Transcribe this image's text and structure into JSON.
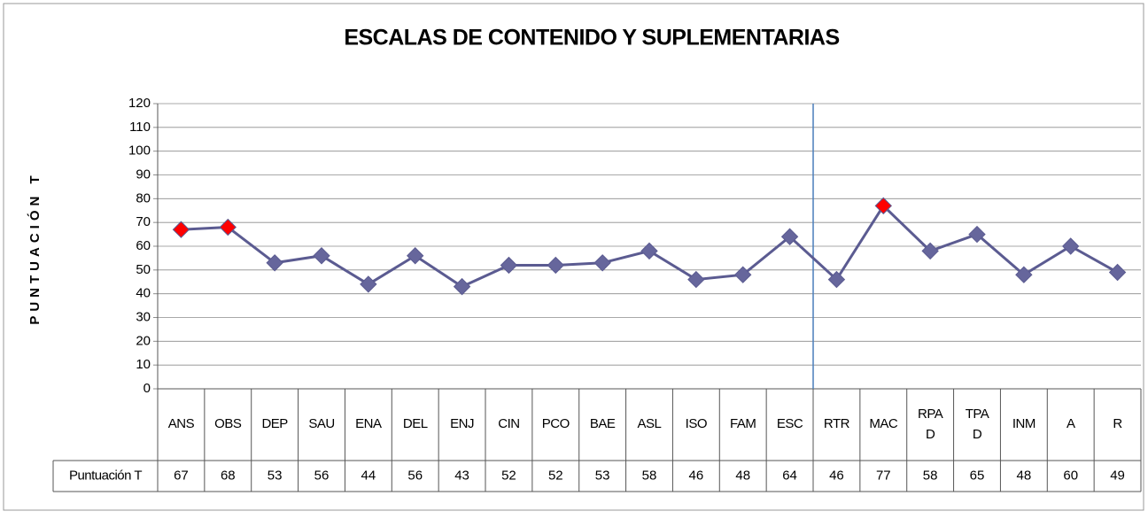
{
  "chart_data": {
    "type": "line",
    "title": "ESCALAS DE CONTENIDO Y SUPLEMENTARIAS",
    "y_label": "PUNTUACIÓN T",
    "categories": [
      "ANS",
      "OBS",
      "DEP",
      "SAU",
      "ENA",
      "DEL",
      "ENJ",
      "CIN",
      "PCO",
      "BAE",
      "ASL",
      "ISO",
      "FAM",
      "ESC",
      "RTR",
      "MAC",
      "RPA\nD",
      "TPA\nD",
      "INM",
      "A",
      "R"
    ],
    "series": [
      {
        "name": "Puntuación T",
        "color": "#5b5b91",
        "values": [
          67,
          68,
          53,
          56,
          44,
          56,
          43,
          52,
          52,
          53,
          58,
          46,
          48,
          64,
          46,
          77,
          58,
          65,
          48,
          60,
          49
        ],
        "point_colors": [
          "#ff0000",
          "#ff0000",
          "#66669c",
          "#66669c",
          "#66669c",
          "#66669c",
          "#66669c",
          "#66669c",
          "#66669c",
          "#66669c",
          "#66669c",
          "#66669c",
          "#66669c",
          "#66669c",
          "#66669c",
          "#ff0000",
          "#66669c",
          "#66669c",
          "#66669c",
          "#66669c",
          "#66669c"
        ]
      }
    ],
    "ylim": [
      0,
      120
    ],
    "yticks": [
      0,
      10,
      20,
      30,
      40,
      50,
      60,
      70,
      80,
      90,
      100,
      110,
      120
    ],
    "grid": true,
    "separator_before_index": 14,
    "separator_color": "#4a7ebb"
  }
}
